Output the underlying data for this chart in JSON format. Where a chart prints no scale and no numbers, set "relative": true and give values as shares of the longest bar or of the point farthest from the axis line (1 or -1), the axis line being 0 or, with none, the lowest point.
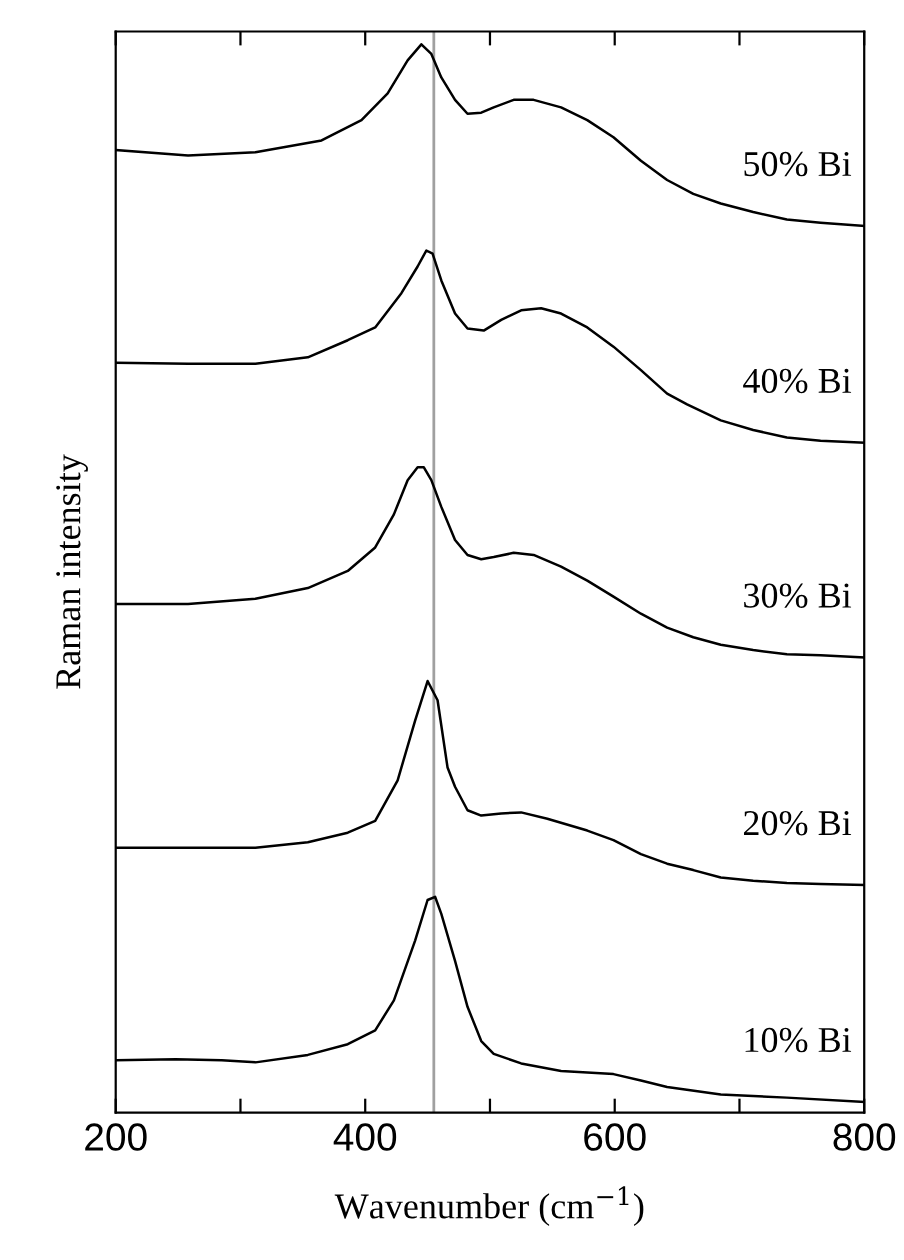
{
  "chart_data": {
    "type": "line",
    "xlabel": "Wavenumber (cm$^{−1}$)",
    "ylabel": "Raman intensity",
    "relative": true,
    "xlim": [
      200,
      800
    ],
    "xticks": [
      200,
      {
        "value": 300,
        "label": null
      },
      400,
      {
        "value": 500,
        "label": null
      },
      600,
      {
        "value": 700,
        "label": null
      },
      800
    ],
    "tick_labels": "x",
    "grid": false,
    "legend": false,
    "marker": "none",
    "line_style": "solid",
    "ref_lines": [
      {
        "axis": "x",
        "value": 455,
        "color": "#a0a0a0"
      }
    ],
    "series": [
      {
        "name": "50% Bi",
        "color": "#000000",
        "x": [
          200,
          258,
          312,
          365,
          397,
          418,
          434,
          445,
          453,
          461,
          472,
          482,
          493,
          503,
          519,
          535,
          557,
          578,
          599,
          621,
          642,
          663,
          685,
          711,
          738,
          765,
          800
        ],
        "values": [
          0.901,
          0.896,
          0.899,
          0.91,
          0.929,
          0.954,
          0.985,
          1,
          0.991,
          0.969,
          0.948,
          0.935,
          0.936,
          0.941,
          0.948,
          0.948,
          0.941,
          0.929,
          0.913,
          0.891,
          0.873,
          0.86,
          0.851,
          0.843,
          0.836,
          0.833,
          0.83
        ]
      },
      {
        "name": "40% Bi",
        "color": "#000000",
        "x": [
          200,
          258,
          312,
          354,
          386,
          408,
          429,
          442,
          449,
          454,
          461,
          472,
          482,
          495,
          509,
          525,
          541,
          557,
          578,
          599,
          621,
          642,
          658,
          685,
          711,
          738,
          765,
          800
        ],
        "values": [
          0.702,
          0.701,
          0.701,
          0.707,
          0.723,
          0.735,
          0.767,
          0.792,
          0.807,
          0.804,
          0.779,
          0.748,
          0.734,
          0.732,
          0.742,
          0.751,
          0.753,
          0.748,
          0.735,
          0.717,
          0.695,
          0.673,
          0.663,
          0.648,
          0.639,
          0.632,
          0.629,
          0.627
        ]
      },
      {
        "name": "30% Bi",
        "color": "#000000",
        "x": [
          200,
          258,
          312,
          354,
          386,
          408,
          423,
          434,
          442,
          447,
          453,
          461,
          472,
          482,
          493,
          503,
          519,
          535,
          557,
          578,
          599,
          621,
          642,
          663,
          685,
          711,
          738,
          765,
          800
        ],
        "values": [
          0.476,
          0.476,
          0.481,
          0.491,
          0.507,
          0.529,
          0.56,
          0.592,
          0.604,
          0.604,
          0.592,
          0.567,
          0.536,
          0.522,
          0.518,
          0.52,
          0.524,
          0.522,
          0.511,
          0.498,
          0.483,
          0.467,
          0.454,
          0.445,
          0.438,
          0.433,
          0.429,
          0.428,
          0.426
        ]
      },
      {
        "name": "20% Bi",
        "color": "#000000",
        "x": [
          200,
          258,
          312,
          354,
          386,
          408,
          426,
          440,
          450,
          458,
          466,
          472,
          482,
          493,
          509,
          525,
          546,
          578,
          599,
          621,
          642,
          663,
          685,
          711,
          738,
          765,
          800
        ],
        "values": [
          0.248,
          0.248,
          0.248,
          0.253,
          0.262,
          0.273,
          0.311,
          0.367,
          0.404,
          0.386,
          0.323,
          0.305,
          0.283,
          0.278,
          0.28,
          0.281,
          0.275,
          0.264,
          0.255,
          0.242,
          0.233,
          0.227,
          0.22,
          0.217,
          0.215,
          0.214,
          0.213
        ]
      },
      {
        "name": "10% Bi",
        "color": "#000000",
        "x": [
          200,
          248,
          285,
          312,
          354,
          386,
          408,
          423,
          440,
          450,
          456,
          461,
          472,
          482,
          493,
          503,
          525,
          557,
          599,
          621,
          642,
          685,
          738,
          800
        ],
        "values": [
          0.049,
          0.05,
          0.049,
          0.047,
          0.054,
          0.064,
          0.077,
          0.105,
          0.161,
          0.199,
          0.202,
          0.186,
          0.142,
          0.099,
          0.067,
          0.055,
          0.046,
          0.039,
          0.036,
          0.03,
          0.024,
          0.017,
          0.014,
          0.01
        ]
      }
    ]
  }
}
